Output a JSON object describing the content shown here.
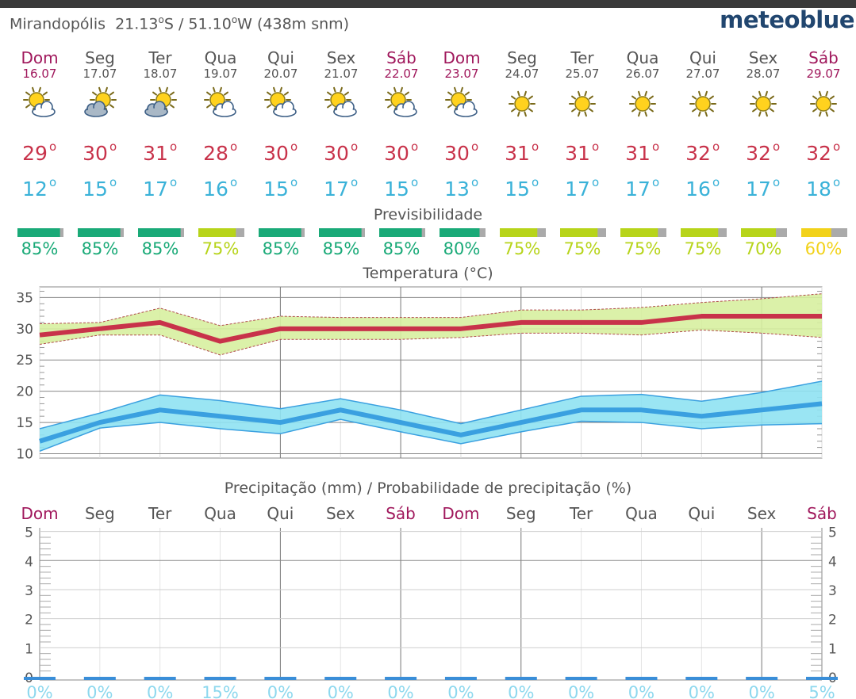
{
  "header": {
    "location": "Mirandopólis",
    "lat": "21.13",
    "lon": "51.10",
    "lat_dir": "S",
    "lon_dir": "W",
    "elevation": "(438m snm)",
    "degree_mark": "o",
    "slash": "/",
    "logo": "meteoblue"
  },
  "days": [
    {
      "name": "Dom",
      "date": "16.07",
      "weekend": true,
      "icon": "sun-cloud-icon"
    },
    {
      "name": "Seg",
      "date": "17.07",
      "weekend": false,
      "icon": "sun-grey-cloud-icon"
    },
    {
      "name": "Ter",
      "date": "18.07",
      "weekend": false,
      "icon": "sun-grey-cloud-icon"
    },
    {
      "name": "Qua",
      "date": "19.07",
      "weekend": false,
      "icon": "sun-cloud-icon"
    },
    {
      "name": "Qui",
      "date": "20.07",
      "weekend": false,
      "icon": "sun-cloud-icon"
    },
    {
      "name": "Sex",
      "date": "21.07",
      "weekend": false,
      "icon": "sun-cloud-icon"
    },
    {
      "name": "Sáb",
      "date": "22.07",
      "weekend": true,
      "icon": "sun-cloud-icon"
    },
    {
      "name": "Dom",
      "date": "23.07",
      "weekend": true,
      "icon": "sun-cloud-icon"
    },
    {
      "name": "Seg",
      "date": "24.07",
      "weekend": false,
      "icon": "sun-icon"
    },
    {
      "name": "Ter",
      "date": "25.07",
      "weekend": false,
      "icon": "sun-icon"
    },
    {
      "name": "Qua",
      "date": "26.07",
      "weekend": false,
      "icon": "sun-icon"
    },
    {
      "name": "Qui",
      "date": "27.07",
      "weekend": false,
      "icon": "sun-icon"
    },
    {
      "name": "Sex",
      "date": "28.07",
      "weekend": false,
      "icon": "sun-icon"
    },
    {
      "name": "Sáb",
      "date": "29.07",
      "weekend": true,
      "icon": "sun-icon"
    }
  ],
  "colors": {
    "weekend": "#a0185c",
    "weekday": "#555555",
    "tmax": "#c8324a",
    "tmin": "#3ab2d8",
    "max_band": "#d7f0a0",
    "min_band": "#8fe2f2",
    "min_line": "#3aa0e0",
    "pred_green": "#1aaa78",
    "pred_lime": "#b7d41a",
    "pred_yellow": "#f2d21a",
    "pred_grey": "#aaaaaa",
    "rain_pct": "#8dd8ee"
  },
  "predictability": {
    "title": "Previsibilidade",
    "values": [
      85,
      85,
      85,
      75,
      85,
      85,
      85,
      80,
      75,
      75,
      75,
      75,
      70,
      60
    ]
  },
  "chart_data": [
    {
      "type": "line",
      "title": "Temperatura (°C)",
      "categories": [
        "Dom 16.07",
        "Seg 17.07",
        "Ter 18.07",
        "Qua 19.07",
        "Qui 20.07",
        "Sex 21.07",
        "Sáb 22.07",
        "Dom 23.07",
        "Seg 24.07",
        "Ter 25.07",
        "Qua 26.07",
        "Qui 27.07",
        "Sex 28.07",
        "Sáb 29.07"
      ],
      "series": [
        {
          "values": [
            29,
            30,
            31,
            28,
            30,
            30,
            30,
            30,
            31,
            31,
            31,
            32,
            32,
            32
          ]
        },
        {
          "values": [
            12,
            15,
            17,
            16,
            15,
            17,
            15,
            13,
            15,
            17,
            17,
            16,
            17,
            18
          ]
        }
      ],
      "max_band": {
        "upper": [
          30.8,
          31,
          33.3,
          30.5,
          32,
          31.8,
          31.8,
          31.8,
          33,
          33,
          33.4,
          34.2,
          34.8,
          35.6
        ],
        "lower": [
          27.5,
          29,
          29,
          25.8,
          28.3,
          28.3,
          28.3,
          28.6,
          29.3,
          29.3,
          29,
          29.8,
          29.3,
          28.6
        ]
      },
      "min_band": {
        "upper": [
          14,
          16.5,
          19.4,
          18.5,
          17.2,
          18.8,
          17,
          14.8,
          17,
          19.2,
          19.5,
          18.4,
          19.8,
          21.6
        ],
        "lower": [
          10.4,
          14.1,
          15,
          14,
          13.2,
          15.5,
          13.5,
          11.6,
          13.5,
          15.2,
          15,
          14,
          14.6,
          14.8
        ]
      },
      "ylim": [
        9.3,
        36.7
      ],
      "yticks": [
        10,
        15,
        20,
        25,
        30,
        35
      ],
      "grid": true
    },
    {
      "type": "bar",
      "title": "Precipitação (mm) / Probabilidade de precipitação (%)",
      "categories": [
        "Dom",
        "Seg",
        "Ter",
        "Qua",
        "Qui",
        "Sex",
        "Sáb",
        "Dom",
        "Seg",
        "Ter",
        "Qua",
        "Qui",
        "Sex",
        "Sáb"
      ],
      "values": [
        0,
        0,
        0,
        0,
        0,
        0,
        0,
        0,
        0,
        0,
        0,
        0,
        0,
        0
      ],
      "probability": [
        0,
        0,
        0,
        15,
        0,
        0,
        0,
        0,
        0,
        0,
        0,
        0,
        0,
        5
      ],
      "probability_unit": "%",
      "ylim": [
        0,
        5
      ],
      "yticks": [
        0,
        1,
        2,
        3,
        4,
        5
      ],
      "grid": true
    }
  ]
}
